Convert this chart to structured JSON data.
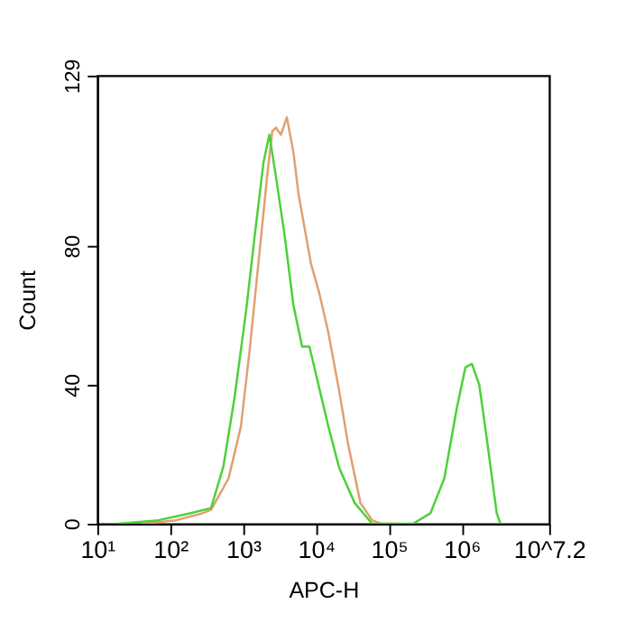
{
  "chart_data": {
    "type": "line",
    "xlabel": "APC-H",
    "ylabel": "Count",
    "log": "x",
    "xlim": [
      10,
      15848932
    ],
    "xticks": [
      {
        "value": 10,
        "label": "10¹"
      },
      {
        "value": 100,
        "label": "10²"
      },
      {
        "value": 1000,
        "label": "10³"
      },
      {
        "value": 10000,
        "label": "10⁴"
      },
      {
        "value": 100000,
        "label": "10⁵"
      },
      {
        "value": 1000000,
        "label": "10⁶"
      },
      {
        "value": 15848932,
        "label": "10^7.2"
      }
    ],
    "ylim": [
      0,
      129
    ],
    "yticks": [
      0,
      40,
      80,
      129
    ],
    "grid": false,
    "marker": "none",
    "line_style": "solid",
    "series": [
      {
        "color": "#e0a070",
        "x": [
          40,
          120,
          275,
          363,
          631,
          933,
          1230,
          1622,
          2138,
          2512,
          2818,
          3311,
          3981,
          4898,
          5754,
          8511,
          11220,
          14791,
          20893,
          27542,
          40738,
          58884,
          77625,
          134896
        ],
        "values": [
          0,
          1,
          3,
          4,
          13,
          28,
          50,
          75,
          100,
          113,
          114,
          112,
          117,
          107,
          95,
          75,
          66,
          55,
          38,
          23,
          6,
          1,
          0,
          0
        ]
      },
      {
        "color": "#4cd13a",
        "x": [
          19,
          69,
          186,
          363,
          537,
          759,
          1096,
          1445,
          1905,
          2291,
          2818,
          3715,
          4898,
          6457,
          8128,
          10000,
          14791,
          20893,
          33884,
          58884,
          213796,
          371535,
          575440,
          851138,
          1122018,
          1380384,
          1737801,
          2187762,
          3019952,
          3388442
        ],
        "values": [
          0,
          1,
          3,
          4.5,
          16.5,
          36,
          61,
          83,
          104,
          112,
          100,
          83,
          63,
          51,
          51,
          43,
          28,
          16,
          6,
          0,
          0,
          3,
          13,
          33,
          45,
          46,
          40,
          25,
          3,
          0
        ]
      }
    ]
  }
}
